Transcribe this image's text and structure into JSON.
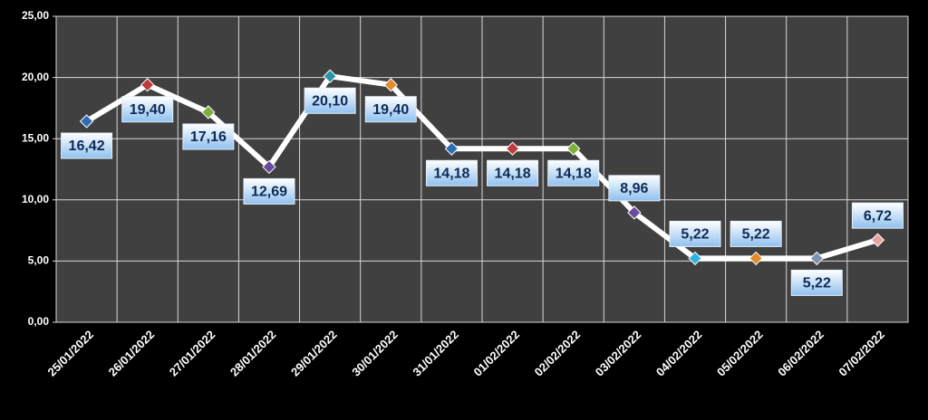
{
  "chart_data": {
    "type": "line",
    "categories": [
      "25/01/2022",
      "26/01/2022",
      "27/01/2022",
      "28/01/2022",
      "29/01/2022",
      "30/01/2022",
      "31/01/2022",
      "01/02/2022",
      "02/02/2022",
      "03/02/2022",
      "04/02/2022",
      "05/02/2022",
      "06/02/2022",
      "07/02/2022"
    ],
    "series": [
      {
        "color": "#ffffff",
        "values": [
          16.42,
          19.4,
          17.16,
          12.69,
          20.1,
          19.4,
          14.18,
          14.18,
          14.18,
          8.96,
          5.22,
          5.22,
          5.22,
          6.72
        ],
        "value_labels": [
          "16,42",
          "19,40",
          "17,16",
          "12,69",
          "20,10",
          "19,40",
          "14,18",
          "14,18",
          "14,18",
          "8,96",
          "5,22",
          "5,22",
          "5,22",
          "6,72"
        ],
        "marker_colors": [
          "#2e6db4",
          "#c0393b",
          "#7fae3a",
          "#6a4a9e",
          "#2a93a8",
          "#e48a2a",
          "#2e6db4",
          "#c0393b",
          "#7fae3a",
          "#6a4a9e",
          "#2fb3e0",
          "#e48a2a",
          "#8090b0",
          "#e8a0a0"
        ]
      }
    ],
    "ylim": [
      0,
      25
    ],
    "yticks": [
      {
        "value": 0,
        "label": "0,00"
      },
      {
        "value": 5,
        "label": "5,00"
      },
      {
        "value": 10,
        "label": "10,00"
      },
      {
        "value": 15,
        "label": "15,00"
      },
      {
        "value": 20,
        "label": "20,00"
      },
      {
        "value": 25,
        "label": "25,00"
      }
    ],
    "grid": true
  }
}
